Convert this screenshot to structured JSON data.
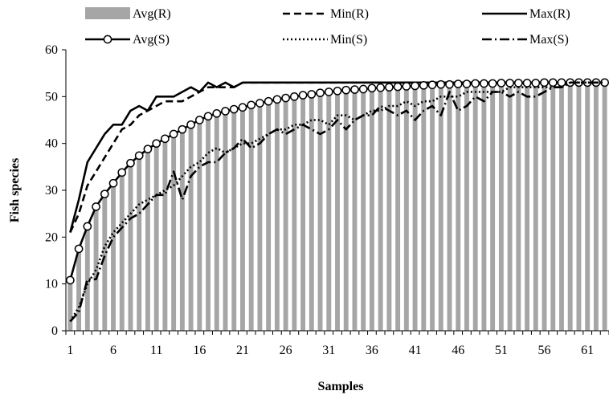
{
  "chart_data": {
    "type": "bar",
    "xlabel": "Samples",
    "ylabel": "Fish species",
    "ylim": [
      0,
      60
    ],
    "yticks": [
      0,
      10,
      20,
      30,
      40,
      50,
      60
    ],
    "xtick_labels": [
      "1",
      "6",
      "11",
      "16",
      "21",
      "26",
      "31",
      "36",
      "41",
      "46",
      "51",
      "56",
      "61"
    ],
    "x": [
      1,
      2,
      3,
      4,
      5,
      6,
      7,
      8,
      9,
      10,
      11,
      12,
      13,
      14,
      15,
      16,
      17,
      18,
      19,
      20,
      21,
      22,
      23,
      24,
      25,
      26,
      27,
      28,
      29,
      30,
      31,
      32,
      33,
      34,
      35,
      36,
      37,
      38,
      39,
      40,
      41,
      42,
      43,
      44,
      45,
      46,
      47,
      48,
      49,
      50,
      51,
      52,
      53,
      54,
      55,
      56,
      57,
      58,
      59,
      60,
      61,
      62,
      63
    ],
    "grid": false,
    "legend_position": "top",
    "colors": {
      "bar": "#a6a6a6",
      "line": "#000000",
      "axis": "#000000"
    },
    "series": [
      {
        "name": "Avg(R)",
        "kind": "bar",
        "values": [
          10.8,
          17.5,
          22.3,
          26.5,
          29.2,
          31.5,
          33.8,
          35.8,
          37.4,
          38.8,
          40.0,
          41.0,
          42.0,
          43.0,
          44.0,
          45.0,
          45.8,
          46.4,
          46.9,
          47.3,
          47.7,
          48.2,
          48.6,
          49.0,
          49.4,
          49.7,
          50.0,
          50.3,
          50.5,
          50.8,
          51.0,
          51.2,
          51.4,
          51.5,
          51.6,
          51.8,
          51.9,
          52.0,
          52.1,
          52.2,
          52.3,
          52.4,
          52.5,
          52.6,
          52.6,
          52.7,
          52.7,
          52.8,
          52.8,
          52.8,
          52.9,
          52.9,
          52.9,
          52.9,
          52.9,
          53.0,
          53.0,
          53.0,
          53.0,
          53.0,
          53.0,
          53.0,
          53.0
        ]
      },
      {
        "name": "Min(R)",
        "kind": "line",
        "dash": "9 5",
        "values": [
          21,
          25,
          31,
          34,
          37,
          40,
          43,
          44,
          46,
          47,
          48,
          49,
          49,
          49,
          50,
          51,
          52,
          52,
          52,
          52,
          53,
          53,
          53,
          53,
          53,
          53,
          53,
          53,
          53,
          53,
          53,
          53,
          53,
          53,
          53,
          53,
          53,
          53,
          53,
          53,
          53,
          53,
          53,
          53,
          53,
          53,
          53,
          53,
          53,
          53,
          53,
          53,
          53,
          53,
          53,
          53,
          53,
          53,
          53,
          53,
          53,
          53,
          53
        ]
      },
      {
        "name": "Max(R)",
        "kind": "line",
        "dash": "",
        "values": [
          21,
          28,
          36,
          39,
          42,
          44,
          44,
          47,
          48,
          47,
          50,
          50,
          50,
          51,
          52,
          51,
          53,
          52,
          53,
          52,
          53,
          53,
          53,
          53,
          53,
          53,
          53,
          53,
          53,
          53,
          53,
          53,
          53,
          53,
          53,
          53,
          53,
          53,
          53,
          53,
          53,
          53,
          53,
          53,
          53,
          53,
          53,
          53,
          53,
          53,
          53,
          53,
          53,
          53,
          53,
          53,
          53,
          53,
          53,
          53,
          53,
          53,
          53
        ]
      },
      {
        "name": "Avg(S)",
        "kind": "line",
        "dash": "",
        "marker": "circle",
        "values": [
          10.8,
          17.5,
          22.3,
          26.5,
          29.2,
          31.5,
          33.8,
          35.8,
          37.4,
          38.8,
          40.0,
          41.0,
          42.0,
          43.0,
          44.0,
          45.0,
          45.8,
          46.4,
          46.9,
          47.3,
          47.7,
          48.2,
          48.6,
          49.0,
          49.4,
          49.7,
          50.0,
          50.3,
          50.5,
          50.8,
          51.0,
          51.2,
          51.4,
          51.5,
          51.6,
          51.8,
          51.9,
          52.0,
          52.1,
          52.2,
          52.3,
          52.4,
          52.5,
          52.6,
          52.6,
          52.7,
          52.7,
          52.8,
          52.8,
          52.8,
          52.9,
          52.9,
          52.9,
          52.9,
          52.9,
          53.0,
          53.0,
          53.0,
          53.0,
          53.0,
          53.0,
          53.0,
          53.0
        ]
      },
      {
        "name": "Min(S)",
        "kind": "line",
        "dash": "2 3",
        "values": [
          2,
          5,
          10,
          13,
          18,
          21,
          23,
          25,
          27,
          28,
          29,
          30,
          31,
          33,
          35,
          36,
          38,
          39,
          38,
          39,
          40,
          40,
          41,
          42,
          43,
          43,
          44,
          44,
          45,
          45,
          44,
          46,
          46,
          45,
          46,
          47,
          47,
          48,
          48,
          49,
          48,
          49,
          49,
          50,
          50,
          50,
          51,
          51,
          51,
          51,
          51,
          52,
          52,
          52,
          52,
          52,
          52,
          52,
          53,
          53,
          53,
          53,
          53
        ]
      },
      {
        "name": "Max(S)",
        "kind": "line",
        "dash": "12 4 2 4",
        "values": [
          2,
          4,
          11,
          11,
          16,
          20,
          22,
          24,
          25,
          27,
          29,
          29,
          34,
          28,
          33,
          35,
          36,
          36,
          38,
          39,
          41,
          39,
          40,
          42,
          43,
          42,
          43,
          44,
          43,
          42,
          43,
          45,
          43,
          45,
          46,
          46,
          48,
          47,
          46,
          47,
          45,
          47,
          48,
          46,
          51,
          47,
          48,
          50,
          49,
          51,
          51,
          50,
          51,
          50,
          50,
          51,
          52,
          52,
          53,
          53,
          53,
          53,
          53
        ]
      }
    ]
  }
}
